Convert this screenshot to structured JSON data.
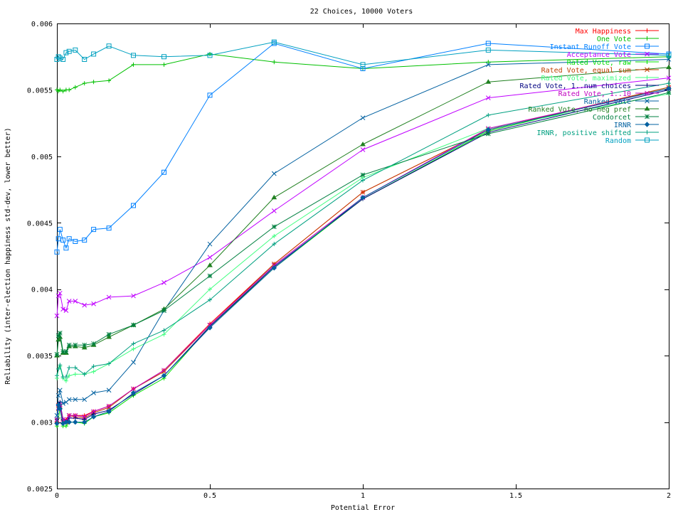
{
  "chart_data": {
    "type": "line",
    "title": "22 Choices, 10000 Voters",
    "xlabel": "Potential Error",
    "ylabel": "Reliability (inter-election happiness std-dev, lower better)",
    "xlim": [
      0,
      2
    ],
    "ylim": [
      0.0025,
      0.006
    ],
    "xticks": [
      0,
      0.5,
      1,
      1.5,
      2
    ],
    "xtick_labels": [
      "0",
      "0.5",
      "1",
      "1.5",
      "2"
    ],
    "yticks": [
      0.0025,
      0.003,
      0.0035,
      0.004,
      0.0045,
      0.005,
      0.0055,
      0.006
    ],
    "ytick_labels": [
      "0.0025",
      "0.003",
      "0.0035",
      "0.004",
      "0.0045",
      "0.005",
      "0.0055",
      "0.006"
    ],
    "grid": false,
    "legend_position": "top-right",
    "x": [
      0,
      0.005,
      0.01,
      0.02,
      0.03,
      0.04,
      0.06,
      0.09,
      0.12,
      0.17,
      0.25,
      0.35,
      0.5,
      0.71,
      1.0,
      1.41,
      2.0
    ],
    "series": [
      {
        "name": "Max Happiness",
        "color": "#ff0000",
        "marker": "plus",
        "values": [
          0.003,
          0.00314,
          0.00312,
          0.00302,
          0.00302,
          0.00305,
          0.00305,
          0.00305,
          0.00308,
          0.00312,
          0.00325,
          0.00339,
          0.00374,
          0.00419,
          0.00473,
          0.0052,
          0.00552
        ]
      },
      {
        "name": "One Vote",
        "color": "#00c000",
        "marker": "plus",
        "values": [
          0.0055,
          0.00549,
          0.0055,
          0.00549,
          0.0055,
          0.0055,
          0.00552,
          0.00555,
          0.00556,
          0.00557,
          0.00569,
          0.00569,
          0.00577,
          0.00571,
          0.00566,
          0.00571,
          0.00575
        ]
      },
      {
        "name": "Instant Runoff Vote",
        "color": "#0080ff",
        "marker": "box",
        "values": [
          0.00428,
          0.00438,
          0.00445,
          0.00437,
          0.00431,
          0.00438,
          0.00436,
          0.00437,
          0.00445,
          0.00446,
          0.00463,
          0.00488,
          0.00546,
          0.00585,
          0.00566,
          0.00585,
          0.00577
        ]
      },
      {
        "name": "Acceptance Vote",
        "color": "#c000ff",
        "marker": "x",
        "values": [
          0.0038,
          0.00395,
          0.00397,
          0.00385,
          0.00384,
          0.00391,
          0.00391,
          0.00388,
          0.00389,
          0.00394,
          0.00395,
          0.00405,
          0.00424,
          0.00459,
          0.00505,
          0.00544,
          0.00559
        ]
      },
      {
        "name": "Rated Vote, raw",
        "color": "#00e000",
        "marker": "plus",
        "values": [
          0.00297,
          0.00303,
          0.0031,
          0.00297,
          0.00297,
          0.003,
          0.003,
          0.00299,
          0.00304,
          0.00307,
          0.0032,
          0.00333,
          0.00372,
          0.00416,
          0.00468,
          0.00519,
          0.00552
        ]
      },
      {
        "name": "Rated Vote, equal sum",
        "color": "#c04000",
        "marker": "x",
        "values": [
          0.00301,
          0.0031,
          0.00312,
          0.003,
          0.003,
          0.00305,
          0.00304,
          0.00303,
          0.00307,
          0.00311,
          0.00325,
          0.00338,
          0.00373,
          0.00419,
          0.00473,
          0.0052,
          0.00552
        ]
      },
      {
        "name": "Rated Vote, maximized",
        "color": "#40ff80",
        "marker": "plus",
        "values": [
          0.00333,
          0.0034,
          0.00342,
          0.00333,
          0.00331,
          0.00335,
          0.00336,
          0.00336,
          0.00338,
          0.00344,
          0.00355,
          0.00366,
          0.004,
          0.0044,
          0.00484,
          0.00521,
          0.00547
        ]
      },
      {
        "name": "Rated Vote, 1..num choices",
        "color": "#000080",
        "marker": "plus",
        "values": [
          0.00302,
          0.00313,
          0.00315,
          0.00302,
          0.003,
          0.00303,
          0.00303,
          0.00302,
          0.00306,
          0.00309,
          0.00321,
          0.00335,
          0.00372,
          0.00417,
          0.00468,
          0.00518,
          0.0055
        ]
      },
      {
        "name": "Rated Vote, 1..10",
        "color": "#c000c0",
        "marker": "x",
        "values": [
          0.00302,
          0.00311,
          0.00313,
          0.00302,
          0.00301,
          0.00305,
          0.00305,
          0.00304,
          0.00308,
          0.00312,
          0.00325,
          0.00339,
          0.00373,
          0.00418,
          0.00469,
          0.00521,
          0.00551
        ]
      },
      {
        "name": "Ranked Vote",
        "color": "#0060a0",
        "marker": "x",
        "values": [
          0.00305,
          0.0032,
          0.00324,
          0.00314,
          0.00315,
          0.00317,
          0.00317,
          0.00317,
          0.00322,
          0.00324,
          0.00345,
          0.00384,
          0.00434,
          0.00487,
          0.00529,
          0.00569,
          0.00573
        ]
      },
      {
        "name": "Ranked Vote, no neg pref",
        "color": "#208020",
        "marker": "triangle",
        "values": [
          0.0035,
          0.00362,
          0.00364,
          0.00352,
          0.00352,
          0.00357,
          0.00357,
          0.00356,
          0.00358,
          0.00364,
          0.00373,
          0.00385,
          0.00418,
          0.00469,
          0.00509,
          0.00556,
          0.00567
        ]
      },
      {
        "name": "Condorcet",
        "color": "#008040",
        "marker": "star",
        "values": [
          0.00351,
          0.00365,
          0.00367,
          0.00353,
          0.00353,
          0.00358,
          0.00358,
          0.00358,
          0.00359,
          0.00366,
          0.00373,
          0.00384,
          0.0041,
          0.00447,
          0.00486,
          0.00517,
          0.00548
        ]
      },
      {
        "name": "IRNR",
        "color": "#0060a0",
        "marker": "diamond",
        "values": [
          0.00299,
          0.00313,
          0.0031,
          0.00299,
          0.003,
          0.003,
          0.003,
          0.003,
          0.00304,
          0.00308,
          0.00322,
          0.00335,
          0.00371,
          0.00416,
          0.00469,
          0.0052,
          0.00551
        ]
      },
      {
        "name": "IRNR, positive shifted",
        "color": "#00a080",
        "marker": "plus",
        "values": [
          0.00335,
          0.0034,
          0.00343,
          0.00334,
          0.00334,
          0.00341,
          0.00341,
          0.00336,
          0.00342,
          0.00344,
          0.00359,
          0.00369,
          0.00392,
          0.00434,
          0.00482,
          0.00531,
          0.00555
        ]
      },
      {
        "name": "Random",
        "color": "#00a0c0",
        "marker": "box",
        "values": [
          0.00573,
          0.00575,
          0.00574,
          0.00573,
          0.00578,
          0.00579,
          0.0058,
          0.00573,
          0.00577,
          0.00583,
          0.00576,
          0.00575,
          0.00576,
          0.00586,
          0.00569,
          0.0058,
          0.00576
        ]
      }
    ]
  }
}
